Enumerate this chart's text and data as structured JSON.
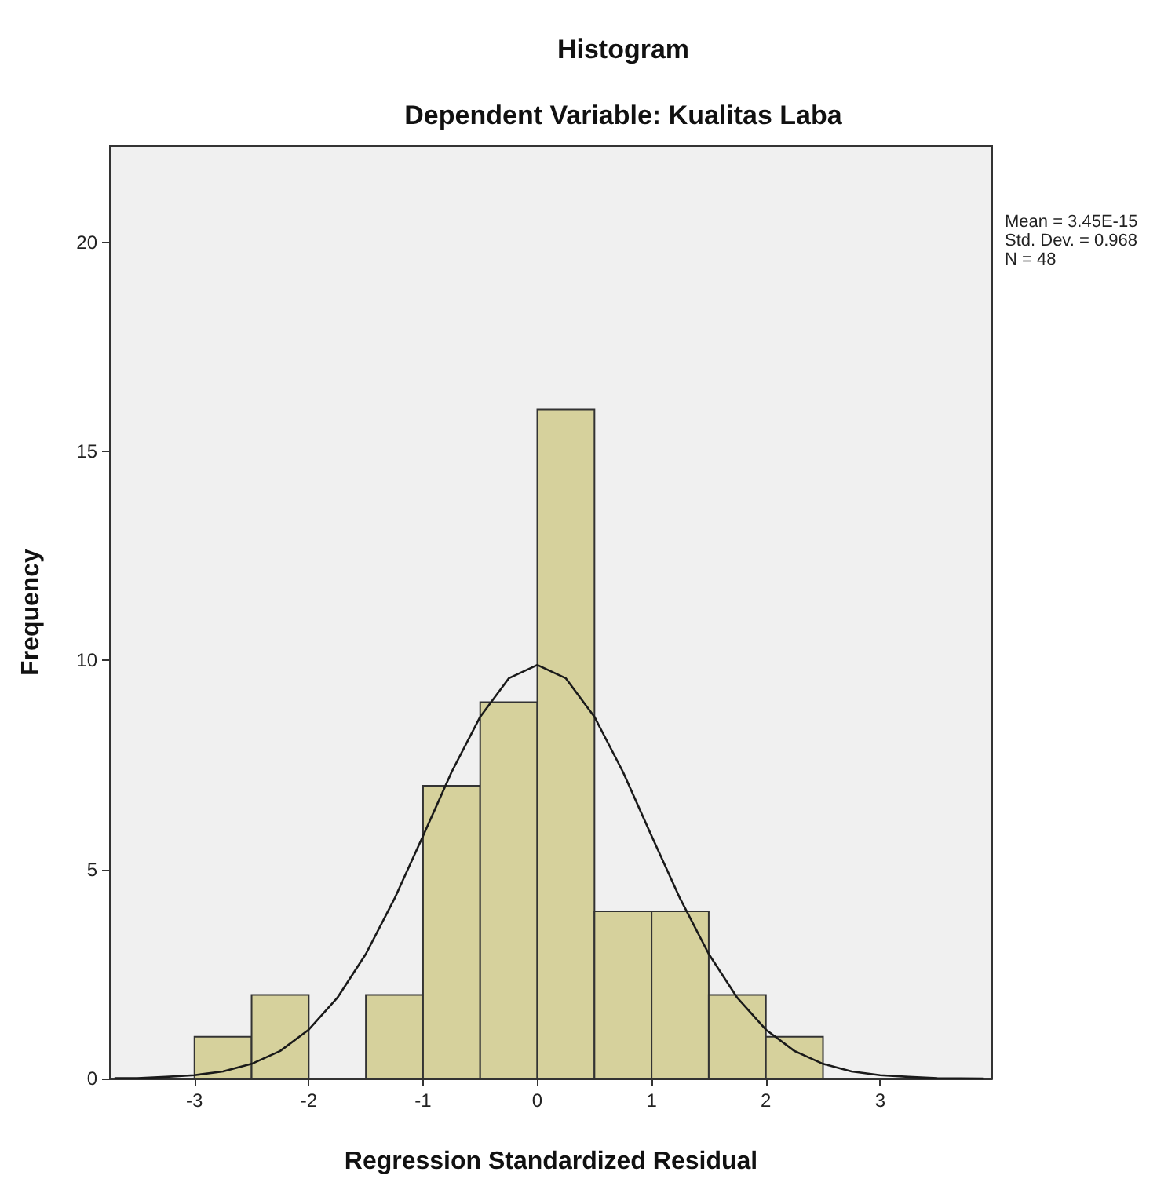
{
  "chart_data": {
    "type": "histogram",
    "title": "Histogram",
    "subtitle": "Dependent Variable: Kualitas Laba",
    "xlabel": "Regression Standardized Residual",
    "ylabel": "Frequency",
    "annotations": [
      "Mean = 3.45E-15",
      "Std. Dev. = 0.968",
      "N = 48"
    ],
    "series": [
      {
        "color": "#d6d19c",
        "bins": [
          -3,
          -2.5,
          -2,
          -1.5,
          -1,
          -0.5,
          0,
          0.5,
          1,
          1.5,
          2,
          2.5
        ],
        "values": [
          1,
          2,
          0,
          2,
          7,
          9,
          16,
          4,
          4,
          2,
          1
        ]
      },
      {
        "type": "line",
        "color": "#1a1a1a",
        "x": [
          -3.7,
          -3.5,
          -3.25,
          -3,
          -2.75,
          -2.5,
          -2.25,
          -2,
          -1.75,
          -1.5,
          -1.25,
          -1,
          -0.75,
          -0.5,
          -0.25,
          0,
          0.25,
          0.5,
          0.75,
          1,
          1.25,
          1.5,
          1.75,
          2,
          2.25,
          2.5,
          2.75,
          3,
          3.25,
          3.5,
          3.9
        ],
        "values": [
          0.01,
          0.01,
          0.04,
          0.08,
          0.17,
          0.35,
          0.66,
          1.17,
          1.93,
          2.98,
          4.3,
          5.8,
          7.33,
          8.65,
          9.57,
          9.89,
          9.57,
          8.65,
          7.33,
          5.8,
          4.3,
          2.98,
          1.93,
          1.17,
          0.66,
          0.35,
          0.17,
          0.08,
          0.04,
          0.01,
          0.0
        ]
      }
    ],
    "xlim": [
      -3.74,
      3.98
    ],
    "xticks": [
      -3,
      -2,
      -1,
      0,
      1,
      2,
      3
    ],
    "ylim": [
      0,
      22.3
    ],
    "yticks": [
      0,
      5,
      10,
      15,
      20
    ],
    "grid": false
  }
}
